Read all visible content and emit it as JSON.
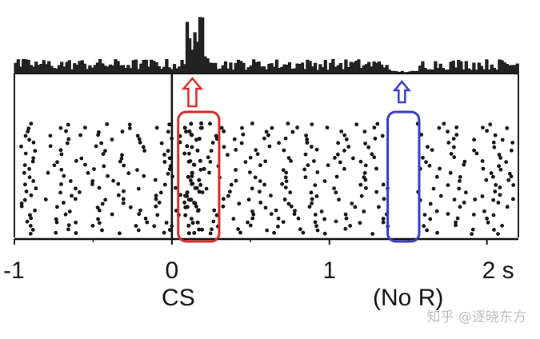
{
  "figure": {
    "x_ticks": [
      {
        "value": -1,
        "label": "-1"
      },
      {
        "value": 0,
        "label": "0"
      },
      {
        "value": 1,
        "label": "1"
      },
      {
        "value": 2,
        "label": "2 s"
      }
    ],
    "event_labels": [
      {
        "time": 0,
        "label": "CS"
      },
      {
        "time": 1.5,
        "label": "(No R)"
      }
    ],
    "x_range": [
      -1,
      2.2
    ],
    "cs_time": 0,
    "trials": 30,
    "highlights": [
      {
        "name": "cs-response-window",
        "start": 0.04,
        "end": 0.3,
        "color": "#d42a2a"
      },
      {
        "name": "omitted-reward-window",
        "start": 1.37,
        "end": 1.57,
        "color": "#3a3ac4"
      }
    ],
    "arrows": [
      {
        "name": "burst-arrow",
        "time": 0.13,
        "color": "#d42a2a"
      },
      {
        "name": "pause-arrow",
        "time": 1.46,
        "color": "#3a3ac4"
      }
    ],
    "watermark": "知乎 @逐晓东方"
  }
}
